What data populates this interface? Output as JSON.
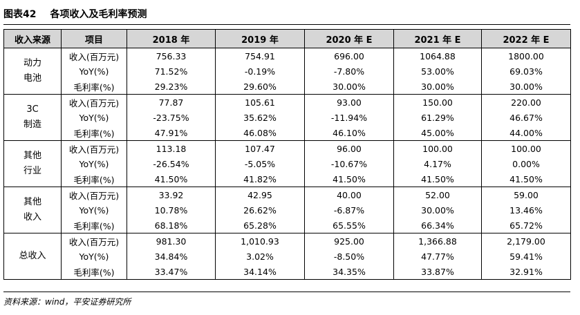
{
  "title": {
    "number": "图表42",
    "text": "各项收入及毛利率预测"
  },
  "table": {
    "headers": [
      "收入来源",
      "项目",
      "2018 年",
      "2019 年",
      "2020 年 E",
      "2021 年 E",
      "2022 年 E"
    ],
    "groups": [
      {
        "name_line1": "动力",
        "name_line2": "电池",
        "rows": [
          {
            "item": "收入(百万元)",
            "values": [
              "756.33",
              "754.91",
              "696.00",
              "1064.88",
              "1800.00"
            ]
          },
          {
            "item": "YoY(%)",
            "values": [
              "71.52%",
              "-0.19%",
              "-7.80%",
              "53.00%",
              "69.03%"
            ]
          },
          {
            "item": "毛利率(%)",
            "values": [
              "29.23%",
              "29.60%",
              "30.00%",
              "30.00%",
              "30.00%"
            ]
          }
        ]
      },
      {
        "name_line1": "3C",
        "name_line2": "制造",
        "rows": [
          {
            "item": "收入(百万元)",
            "values": [
              "77.87",
              "105.61",
              "93.00",
              "150.00",
              "220.00"
            ]
          },
          {
            "item": "YoY(%)",
            "values": [
              "-23.75%",
              "35.62%",
              "-11.94%",
              "61.29%",
              "46.67%"
            ]
          },
          {
            "item": "毛利率(%)",
            "values": [
              "47.91%",
              "46.08%",
              "46.10%",
              "45.00%",
              "44.00%"
            ]
          }
        ]
      },
      {
        "name_line1": "其他",
        "name_line2": "行业",
        "rows": [
          {
            "item": "收入(百万元)",
            "values": [
              "113.18",
              "107.47",
              "96.00",
              "100.00",
              "100.00"
            ]
          },
          {
            "item": "YoY(%)",
            "values": [
              "-26.54%",
              "-5.05%",
              "-10.67%",
              "4.17%",
              "0.00%"
            ]
          },
          {
            "item": "毛利率(%)",
            "values": [
              "41.50%",
              "41.82%",
              "41.50%",
              "41.50%",
              "41.50%"
            ]
          }
        ]
      },
      {
        "name_line1": "其他",
        "name_line2": "收入",
        "rows": [
          {
            "item": "收入(百万元)",
            "values": [
              "33.92",
              "42.95",
              "40.00",
              "52.00",
              "59.00"
            ]
          },
          {
            "item": "YoY(%)",
            "values": [
              "10.78%",
              "26.62%",
              "-6.87%",
              "30.00%",
              "13.46%"
            ]
          },
          {
            "item": "毛利率(%)",
            "values": [
              "68.18%",
              "65.28%",
              "65.55%",
              "66.34%",
              "65.72%"
            ]
          }
        ]
      },
      {
        "name_line1": "总收入",
        "name_line2": "",
        "rows": [
          {
            "item": "收入(百万元)",
            "values": [
              "981.30",
              "1,010.93",
              "925.00",
              "1,366.88",
              "2,179.00"
            ]
          },
          {
            "item": "YoY(%)",
            "values": [
              "34.84%",
              "3.02%",
              "-8.50%",
              "47.77%",
              "59.41%"
            ]
          },
          {
            "item": "毛利率(%)",
            "values": [
              "33.47%",
              "34.14%",
              "34.35%",
              "33.87%",
              "32.91%"
            ]
          }
        ]
      }
    ]
  },
  "footer": {
    "source": "资料来源：wind，平安证券研究所"
  }
}
